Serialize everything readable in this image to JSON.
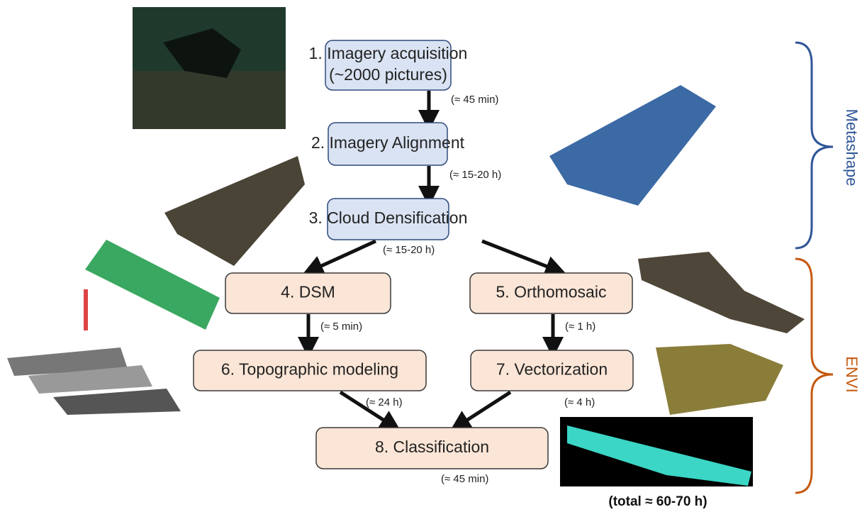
{
  "nodes": [
    {
      "lines": [
        "1. Imagery acquisition",
        "(~2000 pictures)"
      ]
    },
    {
      "lines": [
        "2. Imagery Alignment"
      ]
    },
    {
      "lines": [
        "3. Cloud Densification"
      ]
    },
    {
      "lines": [
        "4. DSM"
      ]
    },
    {
      "lines": [
        "5. Orthomosaic"
      ]
    },
    {
      "lines": [
        "6. Topographic modeling"
      ]
    },
    {
      "lines": [
        "7. Vectorization"
      ]
    },
    {
      "lines": [
        "8. Classification"
      ]
    }
  ],
  "durations": [
    "(≈ 45 min)",
    "(≈ 15-20 h)",
    "(≈ 15-20 h)",
    "(≈ 5 min)",
    "(≈ 1 h)",
    "(≈ 24 h)",
    "(≈ 4 h)",
    "(≈ 45 min)"
  ],
  "groups": [
    "Metashape",
    "ENVI"
  ],
  "total": "(total ≈ 60-70 h)"
}
